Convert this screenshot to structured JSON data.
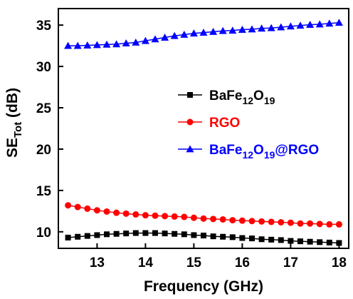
{
  "chart_data": {
    "type": "line",
    "xlabel": "Frequency (GHz)",
    "ylabel": {
      "main": "SE",
      "sub": "Tot",
      "unit": " (dB)"
    },
    "xlim": [
      12.2,
      18.2
    ],
    "ylim": [
      8.0,
      37.0
    ],
    "xticks": [
      13,
      14,
      15,
      16,
      17,
      18
    ],
    "yticks": [
      10,
      15,
      20,
      25,
      30,
      35
    ],
    "grid": false,
    "legend_position": "center-right",
    "series": [
      {
        "name": "BaFe12O19",
        "name_parts": [
          {
            "t": "BaFe"
          },
          {
            "t": "12",
            "sub": true
          },
          {
            "t": "O"
          },
          {
            "t": "19",
            "sub": true
          }
        ],
        "color": "#000000",
        "marker": "square",
        "x": [
          12.4,
          12.6,
          12.8,
          13.0,
          13.2,
          13.4,
          13.6,
          13.8,
          14.0,
          14.2,
          14.4,
          14.6,
          14.8,
          15.0,
          15.2,
          15.4,
          15.6,
          15.8,
          16.0,
          16.2,
          16.4,
          16.6,
          16.8,
          17.0,
          17.2,
          17.4,
          17.6,
          17.8,
          18.0
        ],
        "y": [
          9.3,
          9.4,
          9.5,
          9.6,
          9.7,
          9.75,
          9.8,
          9.85,
          9.85,
          9.85,
          9.8,
          9.75,
          9.7,
          9.6,
          9.55,
          9.45,
          9.4,
          9.35,
          9.25,
          9.2,
          9.1,
          9.05,
          9.0,
          8.9,
          8.85,
          8.8,
          8.75,
          8.7,
          8.65
        ]
      },
      {
        "name": "RGO",
        "name_parts": [
          {
            "t": "RGO"
          }
        ],
        "color": "#ff0000",
        "marker": "circle",
        "x": [
          12.4,
          12.6,
          12.8,
          13.0,
          13.2,
          13.4,
          13.6,
          13.8,
          14.0,
          14.2,
          14.4,
          14.6,
          14.8,
          15.0,
          15.2,
          15.4,
          15.6,
          15.8,
          16.0,
          16.2,
          16.4,
          16.6,
          16.8,
          17.0,
          17.2,
          17.4,
          17.6,
          17.8,
          18.0
        ],
        "y": [
          13.2,
          13.0,
          12.8,
          12.6,
          12.45,
          12.3,
          12.2,
          12.1,
          12.0,
          11.95,
          11.9,
          11.85,
          11.8,
          11.7,
          11.6,
          11.55,
          11.5,
          11.4,
          11.35,
          11.3,
          11.25,
          11.2,
          11.15,
          11.1,
          11.0,
          11.0,
          10.95,
          10.9,
          10.9
        ]
      },
      {
        "name": "BaFe12O19@RGO",
        "name_parts": [
          {
            "t": "BaFe"
          },
          {
            "t": "12",
            "sub": true
          },
          {
            "t": "O"
          },
          {
            "t": "19",
            "sub": true
          },
          {
            "t": "@RGO"
          }
        ],
        "color": "#0000ff",
        "marker": "triangle",
        "x": [
          12.4,
          12.6,
          12.8,
          13.0,
          13.2,
          13.4,
          13.6,
          13.8,
          14.0,
          14.2,
          14.4,
          14.6,
          14.8,
          15.0,
          15.2,
          15.4,
          15.6,
          15.8,
          16.0,
          16.2,
          16.4,
          16.6,
          16.8,
          17.0,
          17.2,
          17.4,
          17.6,
          17.8,
          18.0
        ],
        "y": [
          32.5,
          32.5,
          32.55,
          32.6,
          32.65,
          32.7,
          32.8,
          32.9,
          33.1,
          33.3,
          33.5,
          33.7,
          33.85,
          34.0,
          34.1,
          34.2,
          34.3,
          34.35,
          34.45,
          34.5,
          34.6,
          34.65,
          34.75,
          34.85,
          34.95,
          35.05,
          35.1,
          35.2,
          35.3
        ]
      }
    ]
  }
}
